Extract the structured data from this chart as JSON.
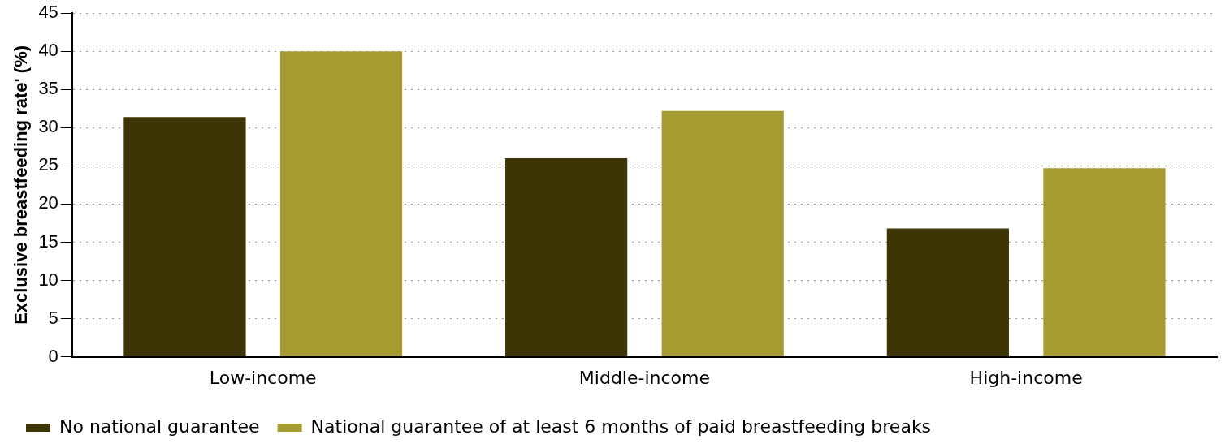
{
  "chart_data": {
    "type": "bar",
    "ylabel": "Exclusive breastfeeding rate' (%)",
    "categories": [
      "Low-income",
      "Middle-income",
      "High-income"
    ],
    "series": [
      {
        "name": "No national guarantee",
        "color": "#3d3505",
        "values": [
          31.4,
          26.0,
          16.8
        ]
      },
      {
        "name": "National guarantee of at least 6 months of paid breastfeeding breaks",
        "color": "#a59b30",
        "values": [
          40.0,
          32.2,
          24.7
        ]
      }
    ],
    "ylim": [
      0,
      45
    ],
    "yticks": [
      0,
      5,
      10,
      15,
      20,
      25,
      30,
      35,
      40,
      45
    ],
    "grid": "y",
    "legend": "bottom"
  }
}
